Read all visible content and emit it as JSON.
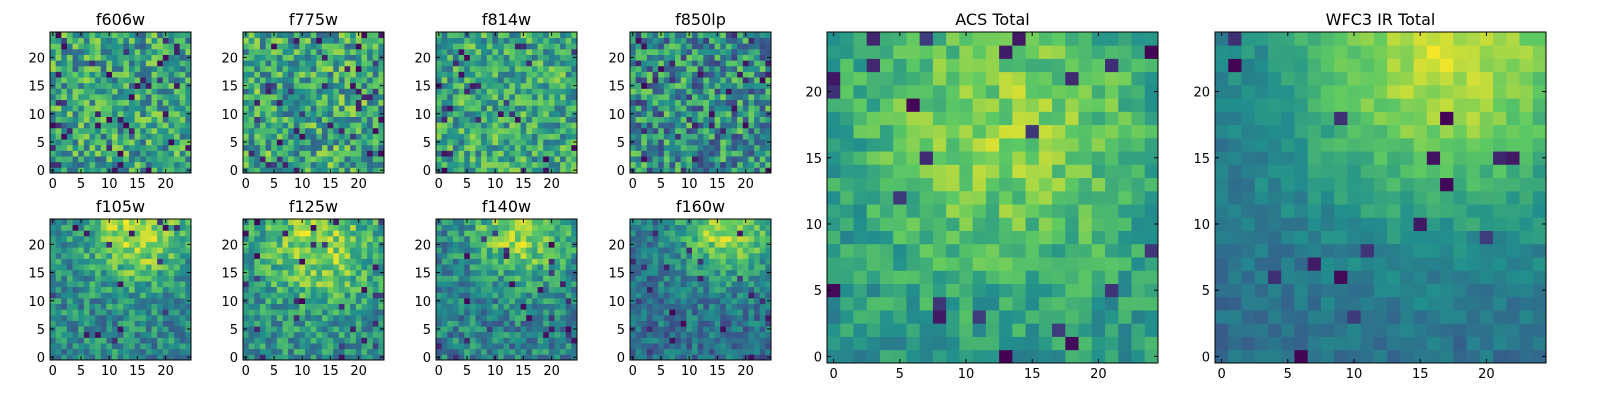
{
  "figure": {
    "colormap": "viridis",
    "colormap_stops": [
      "#440154",
      "#3b528b",
      "#21908d",
      "#5dc963",
      "#fde725"
    ]
  },
  "chart_data": [
    {
      "type": "heatmap",
      "title": "f606w",
      "grid_size": 25,
      "xlim": [
        -0.5,
        24.5
      ],
      "ylim": [
        -0.5,
        24.5
      ],
      "x_ticks": [
        0,
        5,
        10,
        15,
        20
      ],
      "y_ticks": [
        0,
        5,
        10,
        15,
        20
      ],
      "x_tick_labels": [
        "0",
        "5",
        "10",
        "15",
        "20"
      ],
      "y_tick_labels": [
        "0",
        "5",
        "10",
        "15",
        "20"
      ],
      "pattern": {
        "base": 0.58,
        "noise": 0.28,
        "seed": 11,
        "dark_fraction": 0.06
      }
    },
    {
      "type": "heatmap",
      "title": "f775w",
      "grid_size": 25,
      "xlim": [
        -0.5,
        24.5
      ],
      "ylim": [
        -0.5,
        24.5
      ],
      "x_ticks": [
        0,
        5,
        10,
        15,
        20
      ],
      "y_ticks": [
        0,
        5,
        10,
        15,
        20
      ],
      "x_tick_labels": [
        "0",
        "5",
        "10",
        "15",
        "20"
      ],
      "y_tick_labels": [
        "0",
        "5",
        "10",
        "15",
        "20"
      ],
      "pattern": {
        "base": 0.6,
        "noise": 0.28,
        "seed": 23,
        "dark_fraction": 0.06
      }
    },
    {
      "type": "heatmap",
      "title": "f814w",
      "grid_size": 25,
      "xlim": [
        -0.5,
        24.5
      ],
      "ylim": [
        -0.5,
        24.5
      ],
      "x_ticks": [
        0,
        5,
        10,
        15,
        20
      ],
      "y_ticks": [
        0,
        5,
        10,
        15,
        20
      ],
      "x_tick_labels": [
        "0",
        "5",
        "10",
        "15",
        "20"
      ],
      "y_tick_labels": [
        "0",
        "5",
        "10",
        "15",
        "20"
      ],
      "pattern": {
        "base": 0.6,
        "noise": 0.25,
        "seed": 37,
        "dark_fraction": 0.05
      }
    },
    {
      "type": "heatmap",
      "title": "f850lp",
      "grid_size": 25,
      "xlim": [
        -0.5,
        24.5
      ],
      "ylim": [
        -0.5,
        24.5
      ],
      "x_ticks": [
        0,
        5,
        10,
        15,
        20
      ],
      "y_ticks": [
        0,
        5,
        10,
        15,
        20
      ],
      "x_tick_labels": [
        "0",
        "5",
        "10",
        "15",
        "20"
      ],
      "y_tick_labels": [
        "0",
        "5",
        "10",
        "15",
        "20"
      ],
      "pattern": {
        "base": 0.5,
        "noise": 0.3,
        "seed": 41,
        "dark_fraction": 0.08
      }
    },
    {
      "type": "heatmap",
      "title": "f105w",
      "grid_size": 25,
      "xlim": [
        -0.5,
        24.5
      ],
      "ylim": [
        -0.5,
        24.5
      ],
      "x_ticks": [
        0,
        5,
        10,
        15,
        20
      ],
      "y_ticks": [
        0,
        5,
        10,
        15,
        20
      ],
      "x_tick_labels": [
        "0",
        "5",
        "10",
        "15",
        "20"
      ],
      "y_tick_labels": [
        "0",
        "5",
        "10",
        "15",
        "20"
      ],
      "pattern": {
        "base": 0.48,
        "noise": 0.2,
        "seed": 53,
        "dark_fraction": 0.03,
        "blob": [
          15,
          22,
          6,
          0.4
        ]
      }
    },
    {
      "type": "heatmap",
      "title": "f125w",
      "grid_size": 25,
      "xlim": [
        -0.5,
        24.5
      ],
      "ylim": [
        -0.5,
        24.5
      ],
      "x_ticks": [
        0,
        5,
        10,
        15,
        20
      ],
      "y_ticks": [
        0,
        5,
        10,
        15,
        20
      ],
      "x_tick_labels": [
        "0",
        "5",
        "10",
        "15",
        "20"
      ],
      "y_tick_labels": [
        "0",
        "5",
        "10",
        "15",
        "20"
      ],
      "pattern": {
        "base": 0.5,
        "noise": 0.2,
        "seed": 67,
        "dark_fraction": 0.04,
        "blob": [
          13,
          20,
          7,
          0.35
        ]
      }
    },
    {
      "type": "heatmap",
      "title": "f140w",
      "grid_size": 25,
      "xlim": [
        -0.5,
        24.5
      ],
      "ylim": [
        -0.5,
        24.5
      ],
      "x_ticks": [
        0,
        5,
        10,
        15,
        20
      ],
      "y_ticks": [
        0,
        5,
        10,
        15,
        20
      ],
      "x_tick_labels": [
        "0",
        "5",
        "10",
        "15",
        "20"
      ],
      "y_tick_labels": [
        "0",
        "5",
        "10",
        "15",
        "20"
      ],
      "pattern": {
        "base": 0.45,
        "noise": 0.2,
        "seed": 79,
        "dark_fraction": 0.04,
        "blob": [
          15,
          23,
          6,
          0.42
        ]
      }
    },
    {
      "type": "heatmap",
      "title": "f160w",
      "grid_size": 25,
      "xlim": [
        -0.5,
        24.5
      ],
      "ylim": [
        -0.5,
        24.5
      ],
      "x_ticks": [
        0,
        5,
        10,
        15,
        20
      ],
      "y_ticks": [
        0,
        5,
        10,
        15,
        20
      ],
      "x_tick_labels": [
        "0",
        "5",
        "10",
        "15",
        "20"
      ],
      "y_tick_labels": [
        "0",
        "5",
        "10",
        "15",
        "20"
      ],
      "pattern": {
        "base": 0.38,
        "noise": 0.17,
        "seed": 83,
        "dark_fraction": 0.04,
        "blob": [
          17,
          23,
          6,
          0.5
        ]
      }
    },
    {
      "type": "heatmap",
      "title": "ACS Total",
      "grid_size": 25,
      "xlim": [
        -0.5,
        24.5
      ],
      "ylim": [
        -0.5,
        24.5
      ],
      "x_ticks": [
        0,
        5,
        10,
        15,
        20
      ],
      "y_ticks": [
        0,
        5,
        10,
        15,
        20
      ],
      "x_tick_labels": [
        "0",
        "5",
        "10",
        "15",
        "20"
      ],
      "y_tick_labels": [
        "0",
        "5",
        "10",
        "15",
        "20"
      ],
      "pattern": {
        "base": 0.52,
        "noise": 0.14,
        "seed": 97,
        "dark_fraction": 0.04,
        "blob": [
          13,
          17,
          8,
          0.3
        ]
      }
    },
    {
      "type": "heatmap",
      "title": "WFC3 IR Total",
      "grid_size": 25,
      "xlim": [
        -0.5,
        24.5
      ],
      "ylim": [
        -0.5,
        24.5
      ],
      "x_ticks": [
        0,
        5,
        10,
        15,
        20
      ],
      "y_ticks": [
        0,
        5,
        10,
        15,
        20
      ],
      "x_tick_labels": [
        "0",
        "5",
        "10",
        "15",
        "20"
      ],
      "y_tick_labels": [
        "0",
        "5",
        "10",
        "15",
        "20"
      ],
      "pattern": {
        "base": 0.36,
        "noise": 0.08,
        "seed": 101,
        "dark_fraction": 0.02,
        "blob": [
          17,
          23,
          9,
          0.55
        ]
      }
    }
  ]
}
